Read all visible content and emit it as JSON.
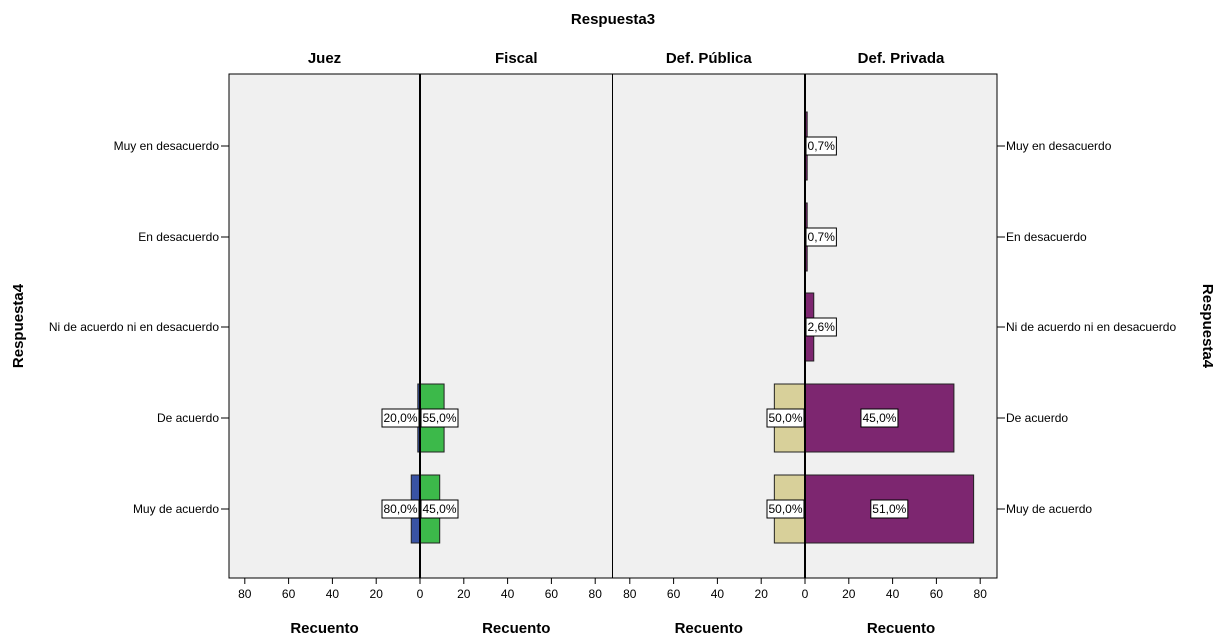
{
  "chart_data": {
    "type": "bar",
    "title": "Respuesta3",
    "panel_variable": "Respuesta3",
    "row_variable": "Respuesta4",
    "pairs": [
      {
        "left": "Juez",
        "right": "Fiscal"
      },
      {
        "left": "Def. Pública",
        "right": "Def. Privada"
      }
    ],
    "categories": [
      "Muy en desacuerdo",
      "En desacuerdo",
      "Ni de acuerdo ni en desacuerdo",
      "De acuerdo",
      "Muy de acuerdo"
    ],
    "xlabel": "Recuento",
    "xticks": [
      80,
      60,
      40,
      20,
      0,
      20,
      40,
      60,
      80
    ],
    "xlim": [
      0,
      87
    ],
    "series": [
      {
        "name": "Juez",
        "color": "#3953a4",
        "values": [
          0,
          0,
          0,
          1,
          4
        ],
        "labels": [
          "",
          "",
          "",
          "20,0%",
          "80,0%"
        ]
      },
      {
        "name": "Fiscal",
        "color": "#3cb94a",
        "values": [
          0,
          0,
          0,
          11,
          9
        ],
        "labels": [
          "",
          "",
          "",
          "55,0%",
          "45,0%"
        ]
      },
      {
        "name": "Def. Pública",
        "color": "#d8d09a",
        "values": [
          0,
          0,
          0,
          14,
          14
        ],
        "labels": [
          "",
          "",
          "",
          "50,0%",
          "50,0%"
        ]
      },
      {
        "name": "Def. Privada",
        "color": "#7d2670",
        "values": [
          1,
          1,
          4,
          68,
          77
        ],
        "labels": [
          "0,7%",
          "0,7%",
          "2,6%",
          "45,0%",
          "51,0%"
        ]
      }
    ],
    "grid": false,
    "background": "#f0f0f0"
  }
}
